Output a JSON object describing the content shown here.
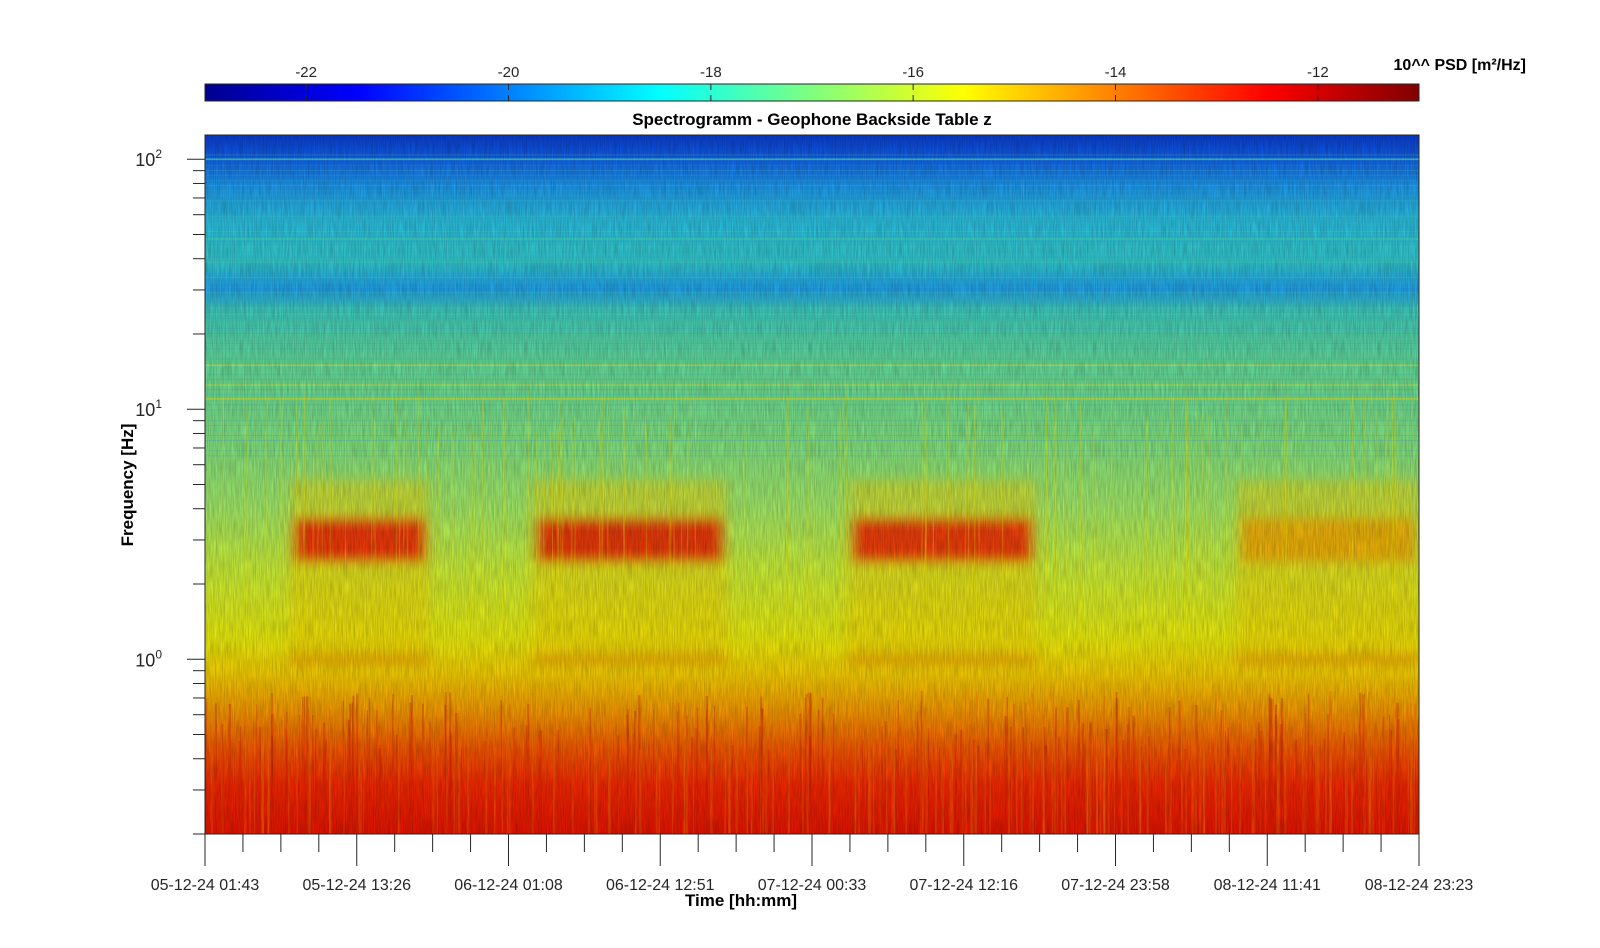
{
  "chart_data": {
    "type": "heatmap",
    "title": "Spectrogramm - Geophone Backside Table z",
    "xlabel": "Time [hh:mm]",
    "ylabel": "Frequency [Hz]",
    "yscale": "log",
    "ylim": [
      0.2,
      125
    ],
    "y_ticks": [
      {
        "value": 100,
        "base": "10",
        "exp": "2"
      },
      {
        "value": 10,
        "base": "10",
        "exp": "1"
      },
      {
        "value": 1,
        "base": "10",
        "exp": "0"
      }
    ],
    "x_ticks": [
      "05-12-24 01:43",
      "05-12-24 13:26",
      "06-12-24 01:08",
      "06-12-24 12:51",
      "07-12-24 00:33",
      "07-12-24 12:16",
      "07-12-24 23:58",
      "08-12-24 11:41",
      "08-12-24 23:23"
    ],
    "colorbar": {
      "label": "10^^ PSD [m²/Hz]",
      "colormap": "jet",
      "range": [
        -23,
        -11
      ],
      "ticks": [
        "-22",
        "-20",
        "-18",
        "-16",
        "-14",
        "-12"
      ]
    },
    "activity_bursts": [
      {
        "t_start": 0.07,
        "t_end": 0.185,
        "f_center": 3.0,
        "level": -12.5
      },
      {
        "t_start": 0.27,
        "t_end": 0.43,
        "f_center": 3.0,
        "level": -12.4
      },
      {
        "t_start": 0.53,
        "t_end": 0.685,
        "f_center": 3.0,
        "level": -12.6
      },
      {
        "t_start": 0.85,
        "t_end": 1.0,
        "f_center": 3.0,
        "level": -14.5
      }
    ],
    "narrowband_lines_hz": [
      11,
      12.5,
      15,
      24,
      48,
      100
    ]
  }
}
